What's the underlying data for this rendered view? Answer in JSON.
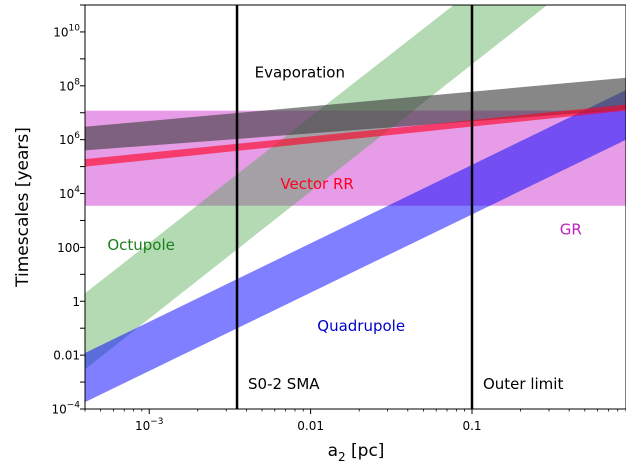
{
  "chart_data": {
    "type": "area",
    "xlabel": "a",
    "xlabel_sub": "2",
    "xlabel_unit": " [pc]",
    "ylabel": "Timescales [years]",
    "xscale": "log",
    "yscale": "log",
    "xlim": [
      0.0004,
      0.9
    ],
    "ylim": [
      0.0001,
      100000000000
    ],
    "x_ticks": [
      {
        "value": 0.001,
        "base": "10",
        "exp": "−3"
      },
      {
        "value": 0.01,
        "label": "0.01"
      },
      {
        "value": 0.1,
        "label": "0.1"
      }
    ],
    "y_ticks": [
      {
        "value": 0.0001,
        "base": "10",
        "exp": "−4"
      },
      {
        "value": 0.01,
        "label": "0.01"
      },
      {
        "value": 1,
        "label": "1"
      },
      {
        "value": 100,
        "label": "100"
      },
      {
        "value": 10000,
        "base": "10",
        "exp": "4"
      },
      {
        "value": 1000000,
        "base": "10",
        "exp": "6"
      },
      {
        "value": 100000000,
        "base": "10",
        "exp": "8"
      },
      {
        "value": 10000000000,
        "base": "10",
        "exp": "10"
      }
    ],
    "series": [
      {
        "name": "GR",
        "kind": "band",
        "color": "#d24bd2",
        "opacity": 0.55,
        "x": [
          0.0004,
          0.9
        ],
        "lower": [
          3500,
          3500
        ],
        "upper": [
          12000000,
          12000000
        ]
      },
      {
        "name": "Octupole",
        "kind": "band",
        "color": "#4ca84c",
        "opacity": 0.42,
        "x": [
          0.0004,
          0.9
        ],
        "lower": [
          0.003,
          20000000000000
        ],
        "upper": [
          2,
          10000000000000000
        ]
      },
      {
        "name": "Quadrupole",
        "kind": "band",
        "color": "#0000ff",
        "opacity": 0.5,
        "x": [
          0.0004,
          0.9
        ],
        "lower": [
          0.00018,
          1000000
        ],
        "upper": [
          0.012,
          70000000
        ]
      },
      {
        "name": "Evaporation",
        "kind": "band",
        "color": "#3d3d3d",
        "opacity": 0.62,
        "x": [
          0.0004,
          0.9
        ],
        "lower": [
          400000,
          13000000
        ],
        "upper": [
          3000000,
          200000000
        ]
      },
      {
        "name": "Vector RR",
        "kind": "band",
        "color": "#ff0022",
        "opacity": 0.62,
        "x": [
          0.0004,
          0.9
        ],
        "lower": [
          100000,
          12000000
        ],
        "upper": [
          190000,
          20000000
        ]
      }
    ],
    "vlines": [
      {
        "x": 0.0035,
        "label": "S0-2 SMA"
      },
      {
        "x": 0.1,
        "label": "Outer limit"
      }
    ],
    "annotations": [
      {
        "text": "Evaporation",
        "x": 0.0045,
        "y": 200000000,
        "color": "#000000"
      },
      {
        "text": "Vector RR",
        "x": 0.0065,
        "y": 15000,
        "color": "#ff0022"
      },
      {
        "text": "Octupole",
        "x": 0.00055,
        "y": 80,
        "color": "#1a801a"
      },
      {
        "text": "Quadrupole",
        "x": 0.011,
        "y": 0.08,
        "color": "#0000cc"
      },
      {
        "text": "GR",
        "x": 0.35,
        "y": 300,
        "color": "#c020c0"
      }
    ],
    "grid": false
  }
}
